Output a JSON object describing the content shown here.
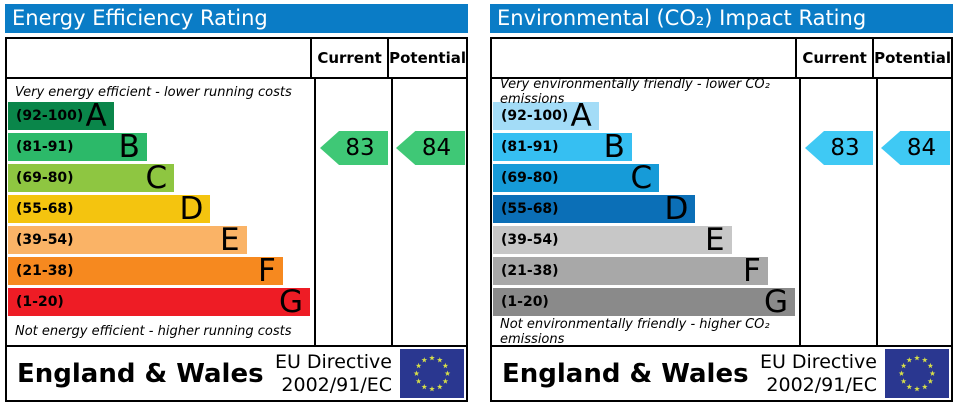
{
  "colors": {
    "header_bg": "#0a7cc6",
    "border": "#000000",
    "flag_bg": "#2a3790",
    "flag_star": "#d6de49"
  },
  "chart_data": [
    {
      "type": "bar",
      "title": "Energy Efficiency Rating",
      "columns": {
        "current": "Current",
        "potential": "Potential"
      },
      "top_note": "Very energy efficient - lower running costs",
      "bottom_note": "Not energy efficient - higher running costs",
      "bands": [
        {
          "letter": "A",
          "range": "(92-100)",
          "range_values": [
            92,
            100
          ],
          "color": "#0a864a",
          "width_pct": 35
        },
        {
          "letter": "B",
          "range": "(81-91)",
          "range_values": [
            81,
            91
          ],
          "color": "#2cb969",
          "width_pct": 46
        },
        {
          "letter": "C",
          "range": "(69-80)",
          "range_values": [
            69,
            80
          ],
          "color": "#8ec641",
          "width_pct": 55
        },
        {
          "letter": "D",
          "range": "(55-68)",
          "range_values": [
            55,
            68
          ],
          "color": "#f4c40f",
          "width_pct": 67
        },
        {
          "letter": "E",
          "range": "(39-54)",
          "range_values": [
            39,
            54
          ],
          "color": "#fab366",
          "width_pct": 79
        },
        {
          "letter": "F",
          "range": "(21-38)",
          "range_values": [
            21,
            38
          ],
          "color": "#f6891f",
          "width_pct": 91
        },
        {
          "letter": "G",
          "range": "(1-20)",
          "range_values": [
            1,
            20
          ],
          "color": "#ee1c25",
          "width_pct": 100
        }
      ],
      "current": {
        "value": 83,
        "band": "B"
      },
      "potential": {
        "value": 84,
        "band": "B"
      },
      "arrow_color": "#3fc876",
      "footer": {
        "region": "England & Wales",
        "directive": [
          "EU Directive",
          "2002/91/EC"
        ]
      }
    },
    {
      "type": "bar",
      "title": "Environmental (CO₂) Impact Rating",
      "columns": {
        "current": "Current",
        "potential": "Potential"
      },
      "top_note": "Very environmentally friendly - lower CO₂ emissions",
      "bottom_note": "Not environmentally friendly - higher CO₂ emissions",
      "bands": [
        {
          "letter": "A",
          "range": "(92-100)",
          "range_values": [
            92,
            100
          ],
          "color": "#a3dcf7",
          "width_pct": 35
        },
        {
          "letter": "B",
          "range": "(81-91)",
          "range_values": [
            81,
            91
          ],
          "color": "#36bff2",
          "width_pct": 46
        },
        {
          "letter": "C",
          "range": "(69-80)",
          "range_values": [
            69,
            80
          ],
          "color": "#169bd8",
          "width_pct": 55
        },
        {
          "letter": "D",
          "range": "(55-68)",
          "range_values": [
            55,
            68
          ],
          "color": "#0b6fb7",
          "width_pct": 67
        },
        {
          "letter": "E",
          "range": "(39-54)",
          "range_values": [
            39,
            54
          ],
          "color": "#c7c7c7",
          "width_pct": 79
        },
        {
          "letter": "F",
          "range": "(21-38)",
          "range_values": [
            21,
            38
          ],
          "color": "#a8a8a8",
          "width_pct": 91
        },
        {
          "letter": "G",
          "range": "(1-20)",
          "range_values": [
            1,
            20
          ],
          "color": "#8a8a8a",
          "width_pct": 100
        }
      ],
      "current": {
        "value": 83,
        "band": "B"
      },
      "potential": {
        "value": 84,
        "band": "B"
      },
      "arrow_color": "#3fc9f4",
      "footer": {
        "region": "England & Wales",
        "directive": [
          "EU Directive",
          "2002/91/EC"
        ]
      }
    }
  ]
}
